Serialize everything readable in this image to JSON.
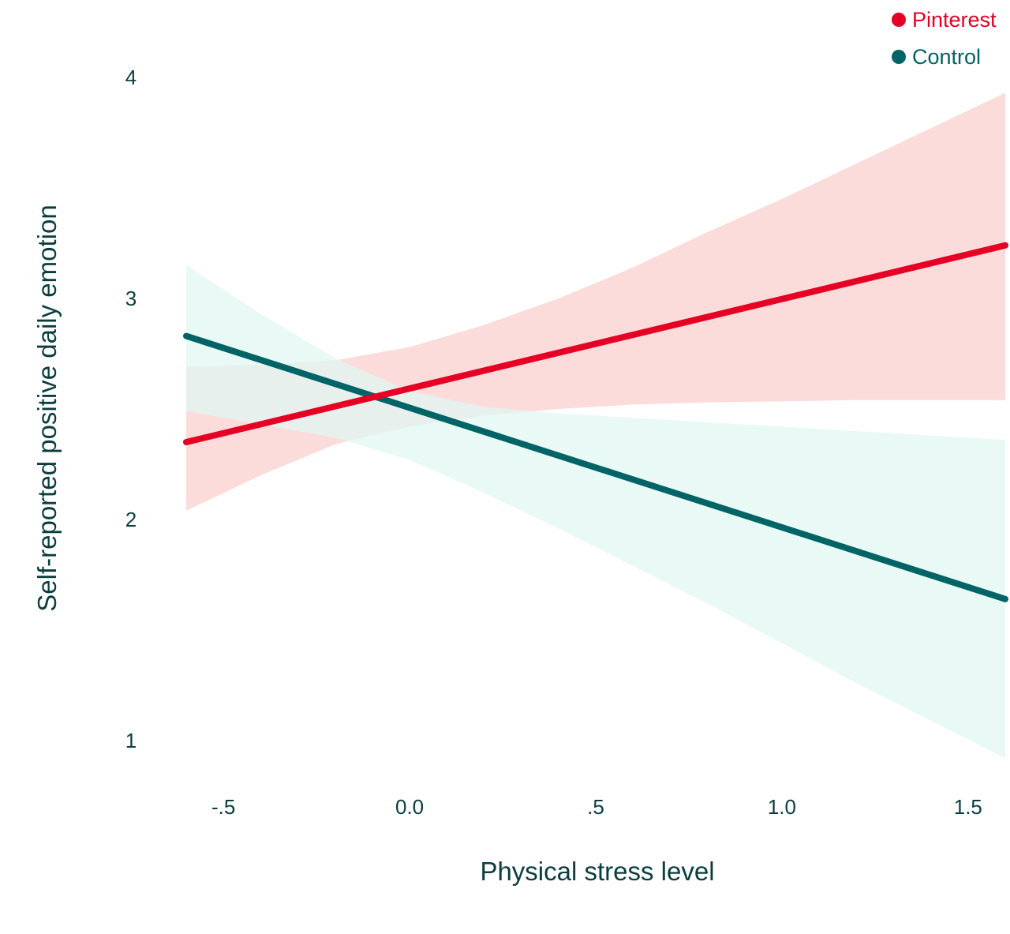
{
  "chart_data": {
    "type": "line",
    "title": "",
    "xlabel": "Physical stress level",
    "ylabel": "Self-reported positive daily emotion",
    "xlim": [
      -0.6,
      1.6
    ],
    "ylim": [
      1,
      4
    ],
    "x_ticks": [
      -0.5,
      0.0,
      0.5,
      1.0,
      1.5
    ],
    "x_tick_labels": [
      "-.5",
      "0.0",
      ".5",
      "1.0",
      "1.5"
    ],
    "y_ticks": [
      1,
      2,
      3,
      4
    ],
    "y_tick_labels": [
      "1",
      "2",
      "3",
      "4"
    ],
    "grid": false,
    "legend_position": "top-right",
    "series": [
      {
        "name": "Pinterest",
        "color": "#e60023",
        "band_color": "#fbdcda",
        "x": [
          -0.6,
          1.6
        ],
        "values": [
          2.35,
          3.24
        ],
        "ci_x": [
          -0.6,
          -0.4,
          -0.2,
          0.0,
          0.2,
          0.4,
          0.6,
          0.8,
          1.0,
          1.2,
          1.4,
          1.6
        ],
        "ci_lower": [
          2.04,
          2.2,
          2.34,
          2.42,
          2.47,
          2.5,
          2.52,
          2.53,
          2.535,
          2.54,
          2.54,
          2.54
        ],
        "ci_upper": [
          2.69,
          2.7,
          2.72,
          2.78,
          2.88,
          3.0,
          3.14,
          3.3,
          3.45,
          3.61,
          3.77,
          3.93
        ]
      },
      {
        "name": "Control",
        "color": "#006466",
        "band_color": "#e2f7f3",
        "x": [
          -0.6,
          1.6
        ],
        "values": [
          2.83,
          1.64
        ],
        "ci_x": [
          -0.6,
          -0.4,
          -0.2,
          0.0,
          0.2,
          0.4,
          0.6,
          0.8,
          1.0,
          1.2,
          1.4,
          1.6
        ],
        "ci_lower": [
          2.49,
          2.43,
          2.37,
          2.27,
          2.12,
          1.96,
          1.79,
          1.62,
          1.44,
          1.26,
          1.09,
          0.92
        ],
        "ci_upper": [
          3.15,
          2.93,
          2.73,
          2.58,
          2.51,
          2.48,
          2.46,
          2.44,
          2.42,
          2.4,
          2.38,
          2.36
        ]
      }
    ]
  }
}
